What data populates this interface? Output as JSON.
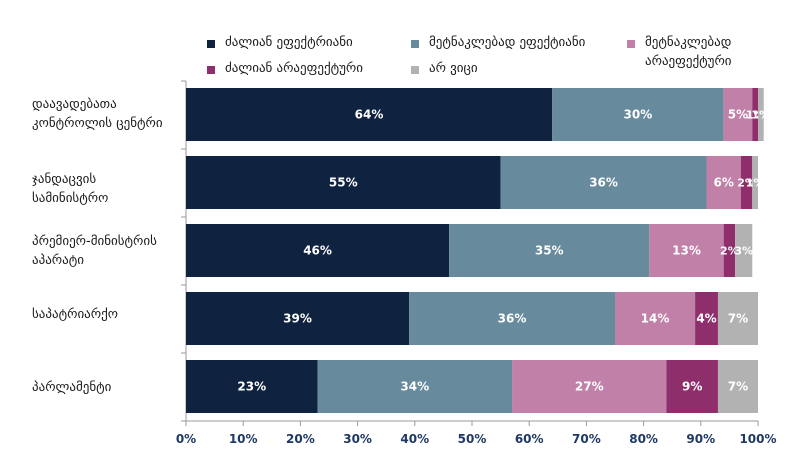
{
  "chart_data": {
    "type": "bar",
    "orientation": "horizontal",
    "stacked": true,
    "categories": [
      [
        "დაავადებათა",
        "კონტროლის ცენტრი"
      ],
      [
        "ჯანდაცვის",
        "სამინისტრო"
      ],
      [
        "პრემიერ-მინისტრის",
        "აპარატი"
      ],
      [
        "საპატრიარქო"
      ],
      [
        "პარლამენტი"
      ]
    ],
    "series": [
      {
        "name": "ძალიან ეფექტრიანი",
        "color": "#0f2340",
        "values": [
          64,
          55,
          46,
          39,
          23
        ],
        "labels": [
          "64%",
          "55%",
          "46%",
          "39%",
          "23%"
        ]
      },
      {
        "name": "მეტნაკლებად ეფექტიანი",
        "color": "#678a9c",
        "values": [
          30,
          36,
          35,
          36,
          34
        ],
        "labels": [
          "30%",
          "36%",
          "35%",
          "36%",
          "34%"
        ]
      },
      {
        "name": "მეტნაკლებად არაეფექტური",
        "color": "#c080a8",
        "values": [
          5,
          6,
          13,
          14,
          27
        ],
        "labels": [
          "5%",
          "6%",
          "13%",
          "14%",
          "27%"
        ]
      },
      {
        "name": "ძალიან არაეფექტური",
        "color": "#8e2f6b",
        "values": [
          1,
          2,
          2,
          4,
          9
        ],
        "labels": [
          "1%",
          "2%",
          "2%",
          "4%",
          "9%"
        ]
      },
      {
        "name": "არ ვიცი",
        "color": "#b2b2b2",
        "values": [
          1,
          1,
          3,
          7,
          7
        ],
        "labels": [
          "1%",
          "1%",
          "3%",
          "7%",
          "7%"
        ]
      }
    ],
    "xlim": [
      0,
      100
    ],
    "xticks": [
      "0%",
      "10%",
      "20%",
      "30%",
      "40%",
      "50%",
      "60%",
      "70%",
      "80%",
      "90%",
      "100%"
    ],
    "grid": false,
    "legend_position": "top"
  }
}
